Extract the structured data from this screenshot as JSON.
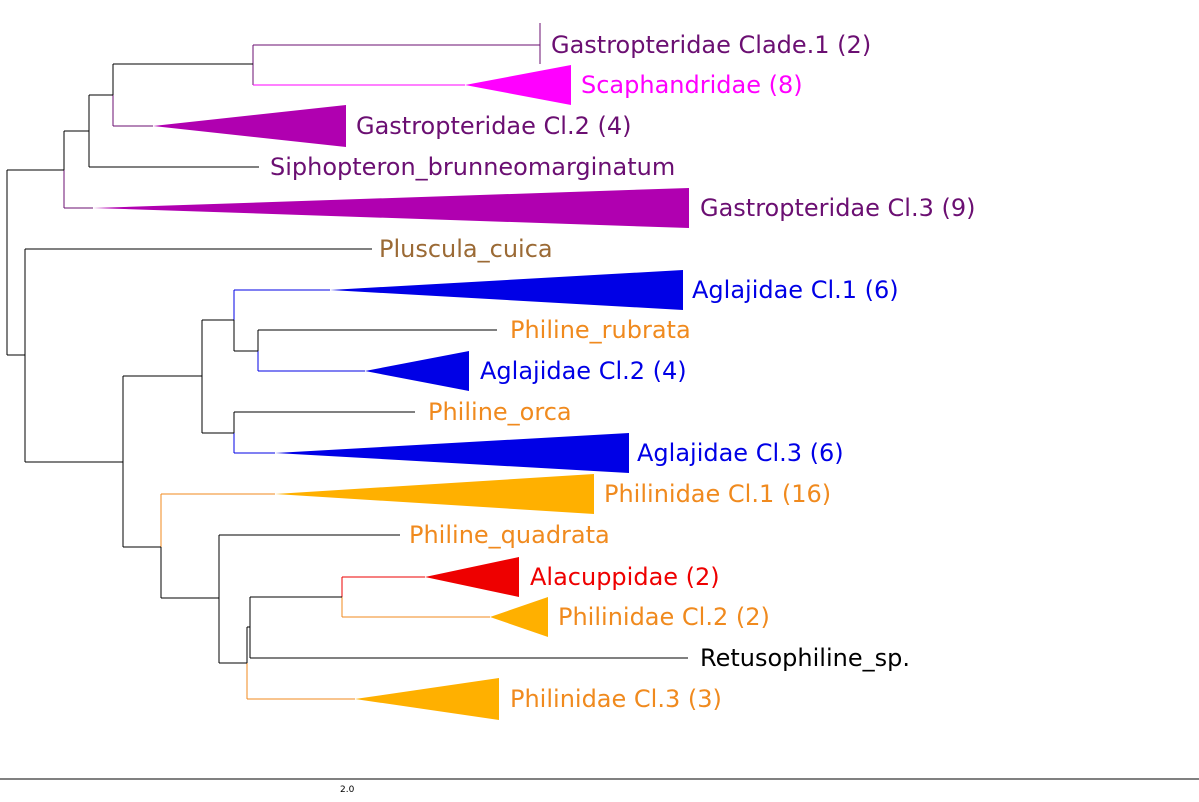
{
  "colors": {
    "branch": "#000000",
    "gastropteridae_text": "#6b0f72",
    "gastropteridae_fill": "#b000b0",
    "scaphandridae": "#ff00ff",
    "pluscula": "#9b6a35",
    "aglajidae": "#0000e6",
    "philinidae_text": "#f08a1e",
    "philinidae_fill": "#ffb000",
    "alacuppidae": "#ee0000"
  },
  "taxa": [
    {
      "label": "Gastropteridae Clade.1 (2)",
      "color": "#6b0f72"
    },
    {
      "label": "Scaphandridae (8)",
      "color": "#ff00ff"
    },
    {
      "label": "Gastropteridae Cl.2 (4)",
      "color": "#6b0f72"
    },
    {
      "label": "Siphopteron_brunneomarginatum",
      "color": "#6b0f72"
    },
    {
      "label": "Gastropteridae Cl.3 (9)",
      "color": "#6b0f72"
    },
    {
      "label": "Pluscula_cuica",
      "color": "#9b6a35"
    },
    {
      "label": "Aglajidae Cl.1 (6)",
      "color": "#0000e6"
    },
    {
      "label": "Philine_rubrata",
      "color": "#f08a1e"
    },
    {
      "label": "Aglajidae Cl.2 (4)",
      "color": "#0000e6"
    },
    {
      "label": "Philine_orca",
      "color": "#f08a1e"
    },
    {
      "label": "Aglajidae Cl.3 (6)",
      "color": "#0000e6"
    },
    {
      "label": "Philinidae Cl.1 (16)",
      "color": "#f08a1e"
    },
    {
      "label": "Philine_quadrata",
      "color": "#f08a1e"
    },
    {
      "label": "Alacuppidae (2)",
      "color": "#ee0000"
    },
    {
      "label": "Philinidae Cl.2 (2)",
      "color": "#f08a1e"
    },
    {
      "label": "Retusophiline_sp.",
      "color": "#000000"
    },
    {
      "label": "Philinidae Cl.3 (3)",
      "color": "#f08a1e"
    }
  ],
  "scale_bar": {
    "label": "2.0"
  }
}
